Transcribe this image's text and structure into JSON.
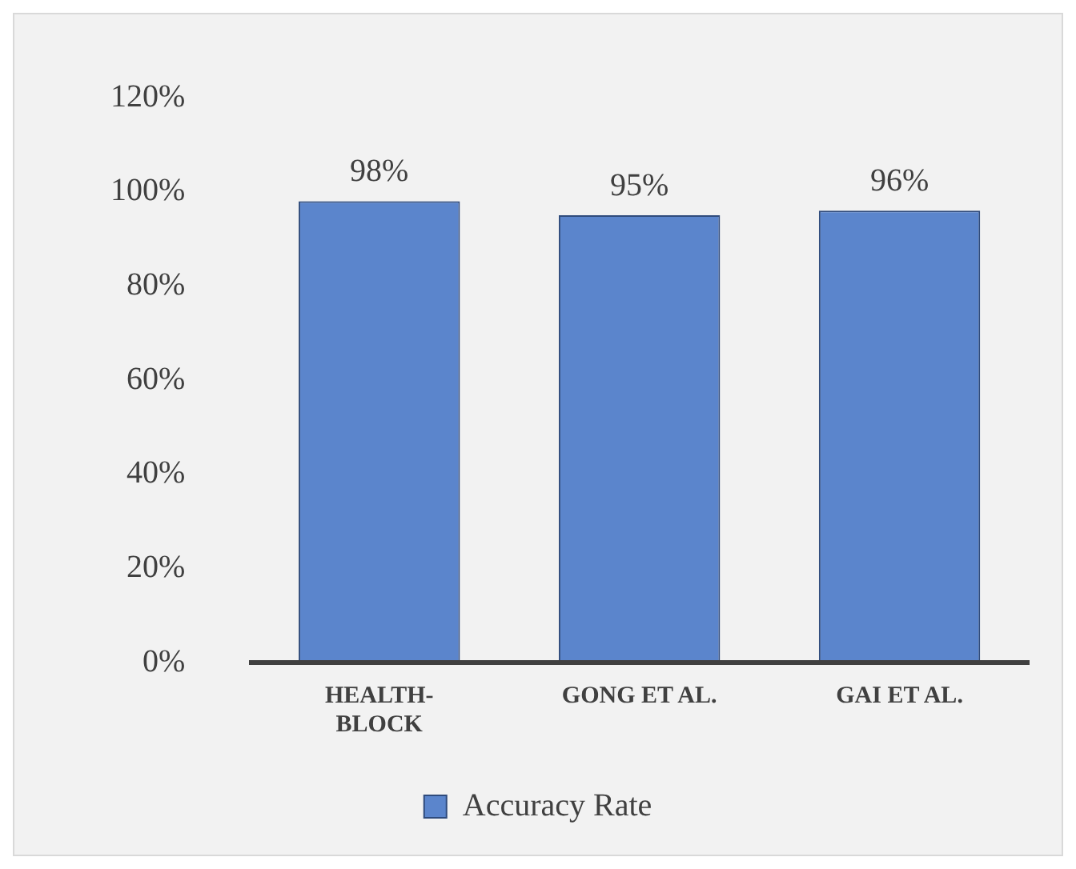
{
  "chart_data": {
    "type": "bar",
    "categories": [
      "HEALTH-BLOCK",
      "GONG ET AL.",
      "GAI ET AL."
    ],
    "series": [
      {
        "name": "Accuracy Rate",
        "color": "#5b85cc",
        "values": [
          98,
          95,
          96
        ],
        "value_labels": [
          "98%",
          "95%",
          "96%"
        ]
      }
    ],
    "ylim": [
      0,
      120
    ],
    "yticks": [
      {
        "value": 0,
        "label": "0%"
      },
      {
        "value": 20,
        "label": "20%"
      },
      {
        "value": 40,
        "label": "40%"
      },
      {
        "value": 60,
        "label": "60%"
      },
      {
        "value": 80,
        "label": "80%"
      },
      {
        "value": 100,
        "label": "100%"
      },
      {
        "value": 120,
        "label": "120%"
      }
    ],
    "grid": false,
    "legend": "bottom"
  }
}
